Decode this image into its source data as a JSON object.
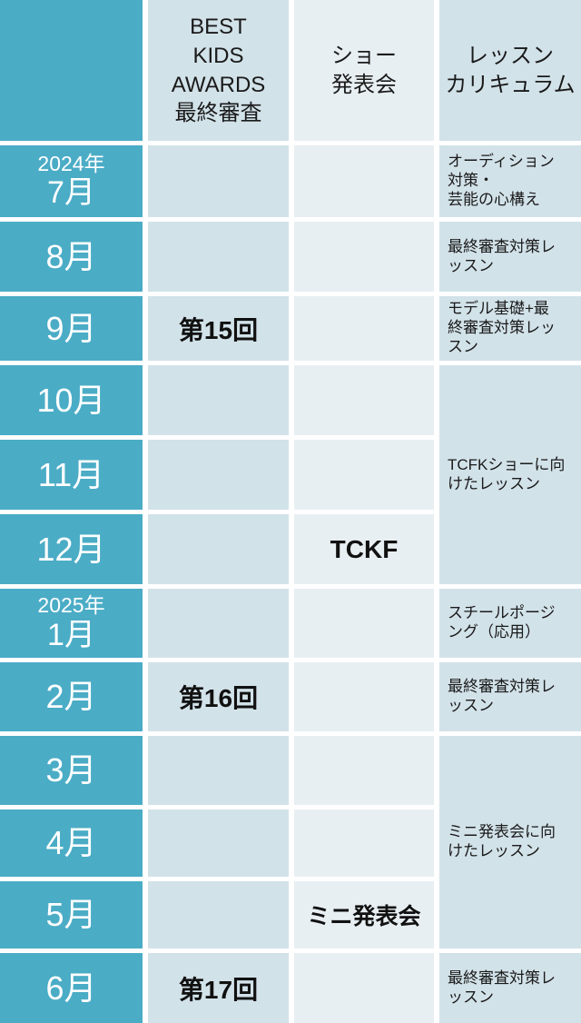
{
  "colors": {
    "month_teal": "#4BACC6",
    "band_blue": "#D2E2E9",
    "light_blue": "#E8EFF3",
    "text_dark": "#1a1a1a",
    "grid_gap_white": "#ffffff"
  },
  "header": {
    "award_label": "BEST\nKIDS\nAWARDS\n最終審査",
    "show_label": "ショー\n発表会",
    "lesson_label": "レッスン\nカリキュラム"
  },
  "rows": [
    {
      "year": "2024年",
      "month": "7月",
      "lesson": "オーディション\n対策・\n芸能の心構え"
    },
    {
      "month": "8月",
      "lesson": "最終審査対策レ\nッスン"
    },
    {
      "month": "9月",
      "award": "第15回",
      "lesson": "モデル基礎+最\n終審査対策レッ\nスン"
    },
    {
      "month": "10月"
    },
    {
      "month": "11月"
    },
    {
      "month": "12月",
      "show": "TCKF"
    },
    {
      "year": "2025年",
      "month": "1月",
      "lesson": "スチールポージ\nング（応用）"
    },
    {
      "month": "2月",
      "award": "第16回",
      "lesson": "最終審査対策レ\nッスン"
    },
    {
      "month": "3月"
    },
    {
      "month": "4月"
    },
    {
      "month": "5月",
      "show": "ミニ発表会"
    },
    {
      "month": "6月",
      "award": "第17回",
      "lesson": "最終審査対策レ\nッスン"
    }
  ],
  "merged_lessons": [
    {
      "text": "TCFKショーに向\nけたレッスン"
    },
    {
      "text": "ミニ発表会に向\nけたレッスン"
    }
  ]
}
